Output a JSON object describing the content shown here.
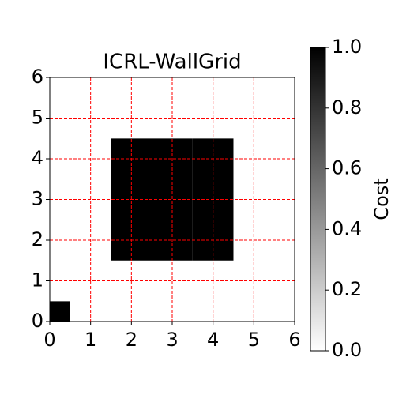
{
  "chart_data": {
    "type": "heatmap",
    "title": "ICRL-WallGrid",
    "x": [
      0,
      1,
      2,
      3,
      4,
      5,
      6
    ],
    "y": [
      0,
      1,
      2,
      3,
      4,
      5,
      6
    ],
    "values": [
      [
        1,
        0,
        0,
        0,
        0,
        0,
        0
      ],
      [
        0,
        0,
        0,
        0,
        0,
        0,
        0
      ],
      [
        0,
        0,
        1,
        1,
        1,
        0,
        0
      ],
      [
        0,
        0,
        1,
        1,
        1,
        0,
        0
      ],
      [
        0,
        0,
        1,
        1,
        1,
        0,
        0
      ],
      [
        0,
        0,
        0,
        0,
        0,
        0,
        0
      ],
      [
        0,
        0,
        0,
        0,
        0,
        0,
        0
      ]
    ],
    "xlim": [
      0,
      6
    ],
    "ylim": [
      0,
      6
    ],
    "xticks": [
      0,
      1,
      2,
      3,
      4,
      5,
      6
    ],
    "yticks": [
      0,
      1,
      2,
      3,
      4,
      5,
      6
    ],
    "grid": true,
    "grid_color": "#ff0000",
    "colormap": [
      "#ffffff",
      "#000000"
    ],
    "colorbar_label": "Cost",
    "clim": [
      0,
      1
    ],
    "cticks": [
      {
        "value": 0,
        "label": "0.0"
      },
      0.2,
      0.4,
      0.6,
      0.8,
      {
        "value": 1,
        "label": "1.0"
      }
    ]
  }
}
